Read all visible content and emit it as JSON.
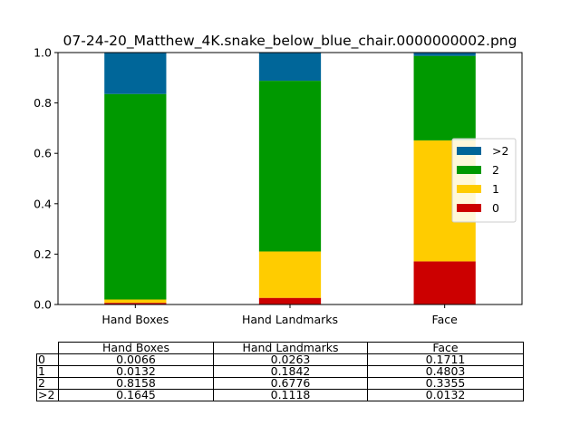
{
  "chart_data": {
    "type": "bar",
    "stacked": true,
    "title": "07-24-20_Matthew_4K.snake_below_blue_chair.0000000002.png",
    "categories": [
      "Hand Boxes",
      "Hand Landmarks",
      "Face"
    ],
    "ylim": [
      0,
      1
    ],
    "yticks": [
      "0.0",
      "0.2",
      "0.4",
      "0.6",
      "0.8",
      "1.0"
    ],
    "grid": false,
    "legend_position": "center-right",
    "series": [
      {
        "name": "0",
        "color": "#cc0000",
        "values": [
          0.0066,
          0.0263,
          0.1711
        ]
      },
      {
        "name": "1",
        "color": "#ffcc00",
        "values": [
          0.0132,
          0.1842,
          0.4803
        ]
      },
      {
        "name": "2",
        "color": "#009900",
        "values": [
          0.8158,
          0.6776,
          0.3355
        ]
      },
      {
        "name": ">2",
        "color": "#006699",
        "values": [
          0.1645,
          0.1118,
          0.0132
        ]
      }
    ],
    "table": {
      "col_labels": [
        "Hand Boxes",
        "Hand Landmarks",
        "Face"
      ],
      "rows": [
        {
          "label": "0",
          "cells": [
            "0.0066",
            "0.0263",
            "0.1711"
          ]
        },
        {
          "label": "1",
          "cells": [
            "0.0132",
            "0.1842",
            "0.4803"
          ]
        },
        {
          "label": "2",
          "cells": [
            "0.8158",
            "0.6776",
            "0.3355"
          ]
        },
        {
          "label": ">2",
          "cells": [
            "0.1645",
            "0.1118",
            "0.0132"
          ]
        }
      ]
    }
  }
}
